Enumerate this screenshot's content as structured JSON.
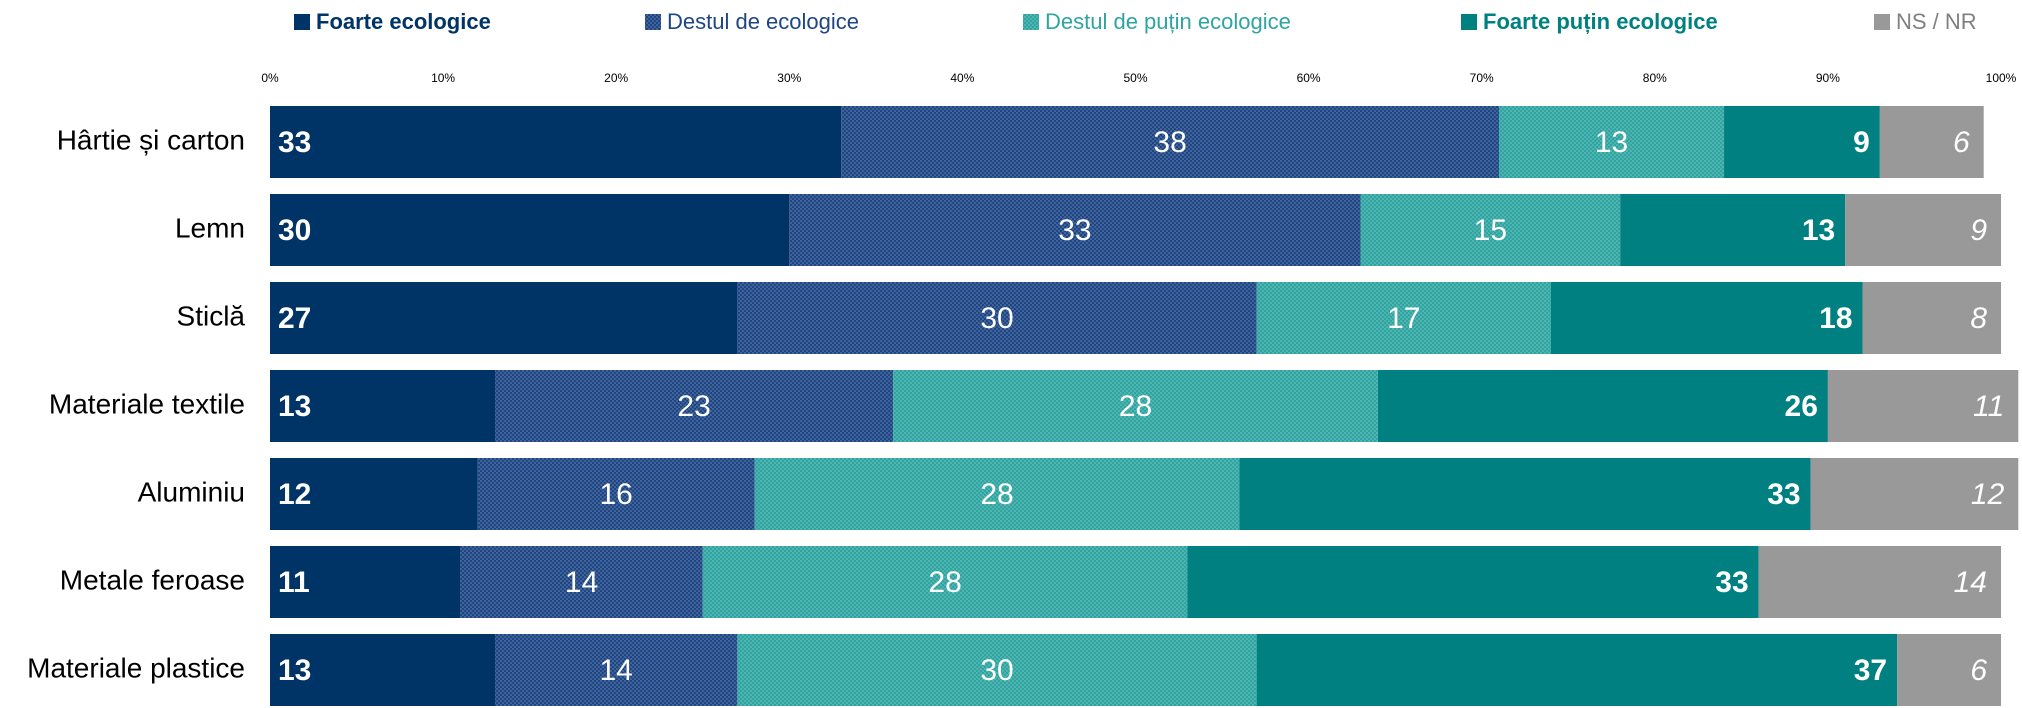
{
  "chart_data": {
    "type": "stacked_barh",
    "categories": [
      "Hârtie și carton",
      "Lemn",
      "Sticlă",
      "Materiale textile",
      "Aluminiu",
      "Metale feroase",
      "Materiale plastice"
    ],
    "series": [
      {
        "name": "Foarte ecologice",
        "color": "#003466",
        "values": [
          33,
          30,
          27,
          13,
          12,
          11,
          13
        ]
      },
      {
        "name": "Destul de ecologice",
        "color": "#1e4584",
        "values": [
          38,
          33,
          30,
          23,
          16,
          14,
          14
        ]
      },
      {
        "name": "Destul de puțin ecologice",
        "color": "#2fa5a1",
        "values": [
          13,
          15,
          17,
          28,
          28,
          28,
          30
        ]
      },
      {
        "name": "Foarte puțin ecologice",
        "color": "#008080",
        "values": [
          9,
          13,
          18,
          26,
          33,
          33,
          37
        ]
      },
      {
        "name": "NS / NR",
        "color": "#999999",
        "values": [
          6,
          9,
          8,
          11,
          12,
          14,
          6
        ]
      }
    ],
    "xlim": [
      0,
      100
    ],
    "xticks": [
      {
        "value": 0,
        "label": "0%"
      },
      {
        "value": 10,
        "label": "10%"
      },
      {
        "value": 20,
        "label": "20%"
      },
      {
        "value": 30,
        "label": "30%"
      },
      {
        "value": 40,
        "label": "40%"
      },
      {
        "value": 50,
        "label": "50%"
      },
      {
        "value": 60,
        "label": "60%"
      },
      {
        "value": 70,
        "label": "70%"
      },
      {
        "value": 80,
        "label": "80%"
      },
      {
        "value": 90,
        "label": "90%"
      },
      {
        "value": 100,
        "label": "100%"
      }
    ],
    "legend": "top"
  }
}
